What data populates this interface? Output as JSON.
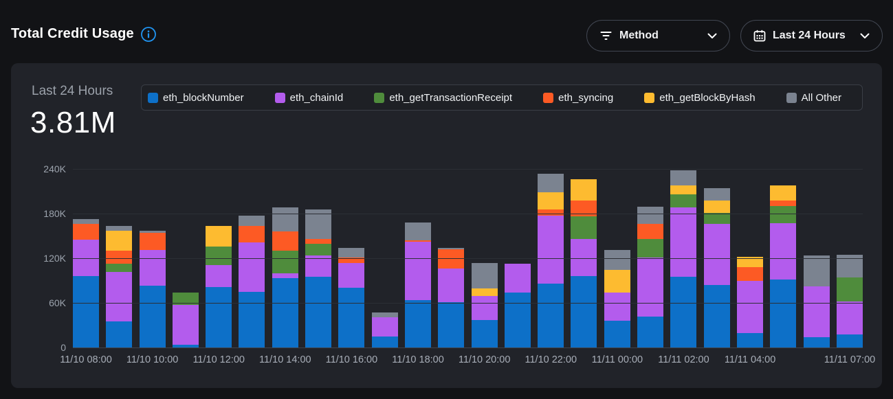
{
  "header": {
    "title": "Total Credit Usage",
    "filters": {
      "method_label": "Method",
      "time_range_label": "Last 24 Hours"
    }
  },
  "summary": {
    "period_label": "Last 24 Hours",
    "total_value": "3.81M"
  },
  "colors": {
    "page_bg": "#121316",
    "card_bg": "#212329",
    "accent_info": "#2095f2",
    "blue": "#0d70c8",
    "purple": "#b35ced",
    "green": "#4f8c3c",
    "orange": "#fd5a24",
    "yellow": "#fdbb30",
    "gray": "#7b8390"
  },
  "chart_data": {
    "type": "bar",
    "stacked": true,
    "title": "Total Credit Usage",
    "legend_position": "top",
    "grid": "horizontal",
    "ylim": [
      0,
      240000
    ],
    "y_ticks": [
      {
        "label": "0",
        "value": 0
      },
      {
        "label": "60K",
        "value": 60000
      },
      {
        "label": "120K",
        "value": 120000
      },
      {
        "label": "180K",
        "value": 180000
      },
      {
        "label": "240K",
        "value": 240000
      }
    ],
    "x": [
      "11/10 08:00",
      "11/10 09:00",
      "11/10 10:00",
      "11/10 11:00",
      "11/10 12:00",
      "11/10 13:00",
      "11/10 14:00",
      "11/10 15:00",
      "11/10 16:00",
      "11/10 17:00",
      "11/10 18:00",
      "11/10 19:00",
      "11/10 20:00",
      "11/10 21:00",
      "11/10 22:00",
      "11/10 23:00",
      "11/11 00:00",
      "11/11 01:00",
      "11/11 02:00",
      "11/11 03:00",
      "11/11 04:00",
      "11/11 05:00",
      "11/11 06:00",
      "11/11 07:00"
    ],
    "x_tick_labels": [
      "11/10 08:00",
      "11/10 10:00",
      "11/10 12:00",
      "11/10 14:00",
      "11/10 16:00",
      "11/10 18:00",
      "11/10 20:00",
      "11/10 22:00",
      "11/11 00:00",
      "11/11 02:00",
      "11/11 04:00",
      "11/11 07:00"
    ],
    "x_tick_bar_indices": [
      0,
      2,
      4,
      6,
      8,
      10,
      12,
      14,
      16,
      18,
      20,
      23
    ],
    "series": [
      {
        "name": "eth_blockNumber",
        "color": "#0d70c8",
        "values": [
          96000,
          35000,
          83000,
          4000,
          81000,
          75000,
          93000,
          95000,
          80000,
          15000,
          64000,
          61000,
          37000,
          74000,
          86000,
          96000,
          36000,
          42000,
          95000,
          84000,
          19000,
          91000,
          14000,
          18000
        ]
      },
      {
        "name": "eth_chainId",
        "color": "#b35ced",
        "values": [
          49000,
          67000,
          48000,
          53000,
          30000,
          66000,
          7000,
          29000,
          34000,
          26000,
          78000,
          45000,
          32000,
          39000,
          91000,
          50000,
          38000,
          79000,
          93000,
          82000,
          71000,
          76000,
          68000,
          44000
        ]
      },
      {
        "name": "eth_getTransactionReceipt",
        "color": "#4f8c3c",
        "values": [
          0,
          11000,
          0,
          17000,
          25000,
          0,
          30000,
          15000,
          0,
          0,
          0,
          0,
          0,
          0,
          0,
          30000,
          0,
          25000,
          18000,
          15000,
          0,
          23000,
          0,
          32000
        ]
      },
      {
        "name": "eth_syncing",
        "color": "#fd5a24",
        "values": [
          21000,
          17000,
          23000,
          0,
          0,
          22000,
          26000,
          7000,
          7000,
          0,
          2000,
          26000,
          0,
          0,
          9000,
          22000,
          0,
          20000,
          0,
          0,
          18000,
          8000,
          0,
          0
        ]
      },
      {
        "name": "eth_getBlockByHash",
        "color": "#fdbb30",
        "values": [
          0,
          27000,
          0,
          0,
          27000,
          0,
          0,
          0,
          0,
          0,
          0,
          0,
          10000,
          0,
          23000,
          28000,
          30000,
          0,
          12000,
          17000,
          14000,
          20000,
          0,
          0
        ]
      },
      {
        "name": "All Other",
        "color": "#7b8390",
        "values": [
          7000,
          6000,
          3000,
          0,
          0,
          14000,
          32000,
          40000,
          13000,
          6000,
          24000,
          2000,
          35000,
          0,
          25000,
          0,
          27000,
          23000,
          20000,
          16000,
          0,
          0,
          42000,
          31000
        ]
      }
    ]
  }
}
